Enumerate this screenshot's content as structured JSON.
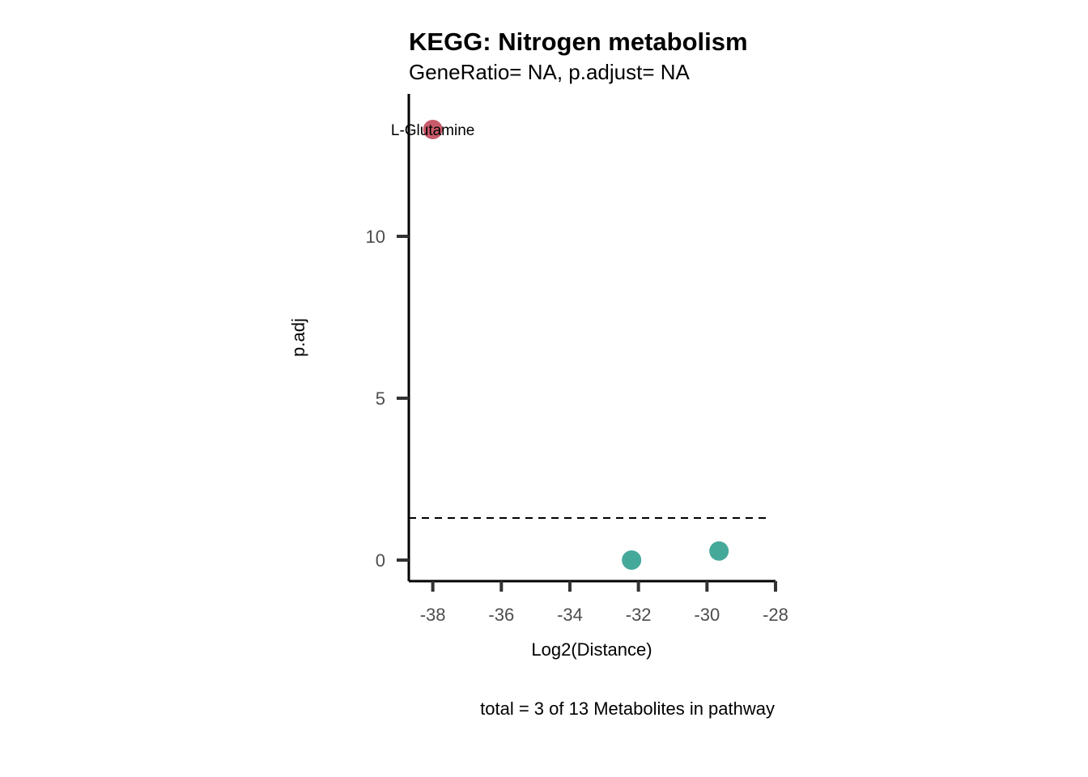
{
  "chart_data": {
    "type": "scatter",
    "title": "KEGG: Nitrogen metabolism",
    "subtitle": "GeneRatio= NA, p.adjust= NA",
    "xlabel": "Log2(Distance)",
    "ylabel": "p.adj",
    "caption": "total = 3 of 13 Metabolites in pathway",
    "xlim": [
      -38.7,
      -28
    ],
    "ylim": [
      -0.65,
      14.4
    ],
    "x_ticks": [
      -38,
      -36,
      -34,
      -32,
      -30,
      -28
    ],
    "y_ticks": [
      0,
      5,
      10
    ],
    "threshold_line": {
      "y": 1.3,
      "style": "dashed"
    },
    "grid": false,
    "legend": "none",
    "points": [
      {
        "x": -38.0,
        "y": 13.3,
        "label": "L-Glutamine",
        "color": "#c95a6a"
      },
      {
        "x": -32.2,
        "y": 0.0,
        "label": "",
        "color": "#45a99a"
      },
      {
        "x": -29.65,
        "y": 0.28,
        "label": "",
        "color": "#45a99a"
      }
    ]
  }
}
